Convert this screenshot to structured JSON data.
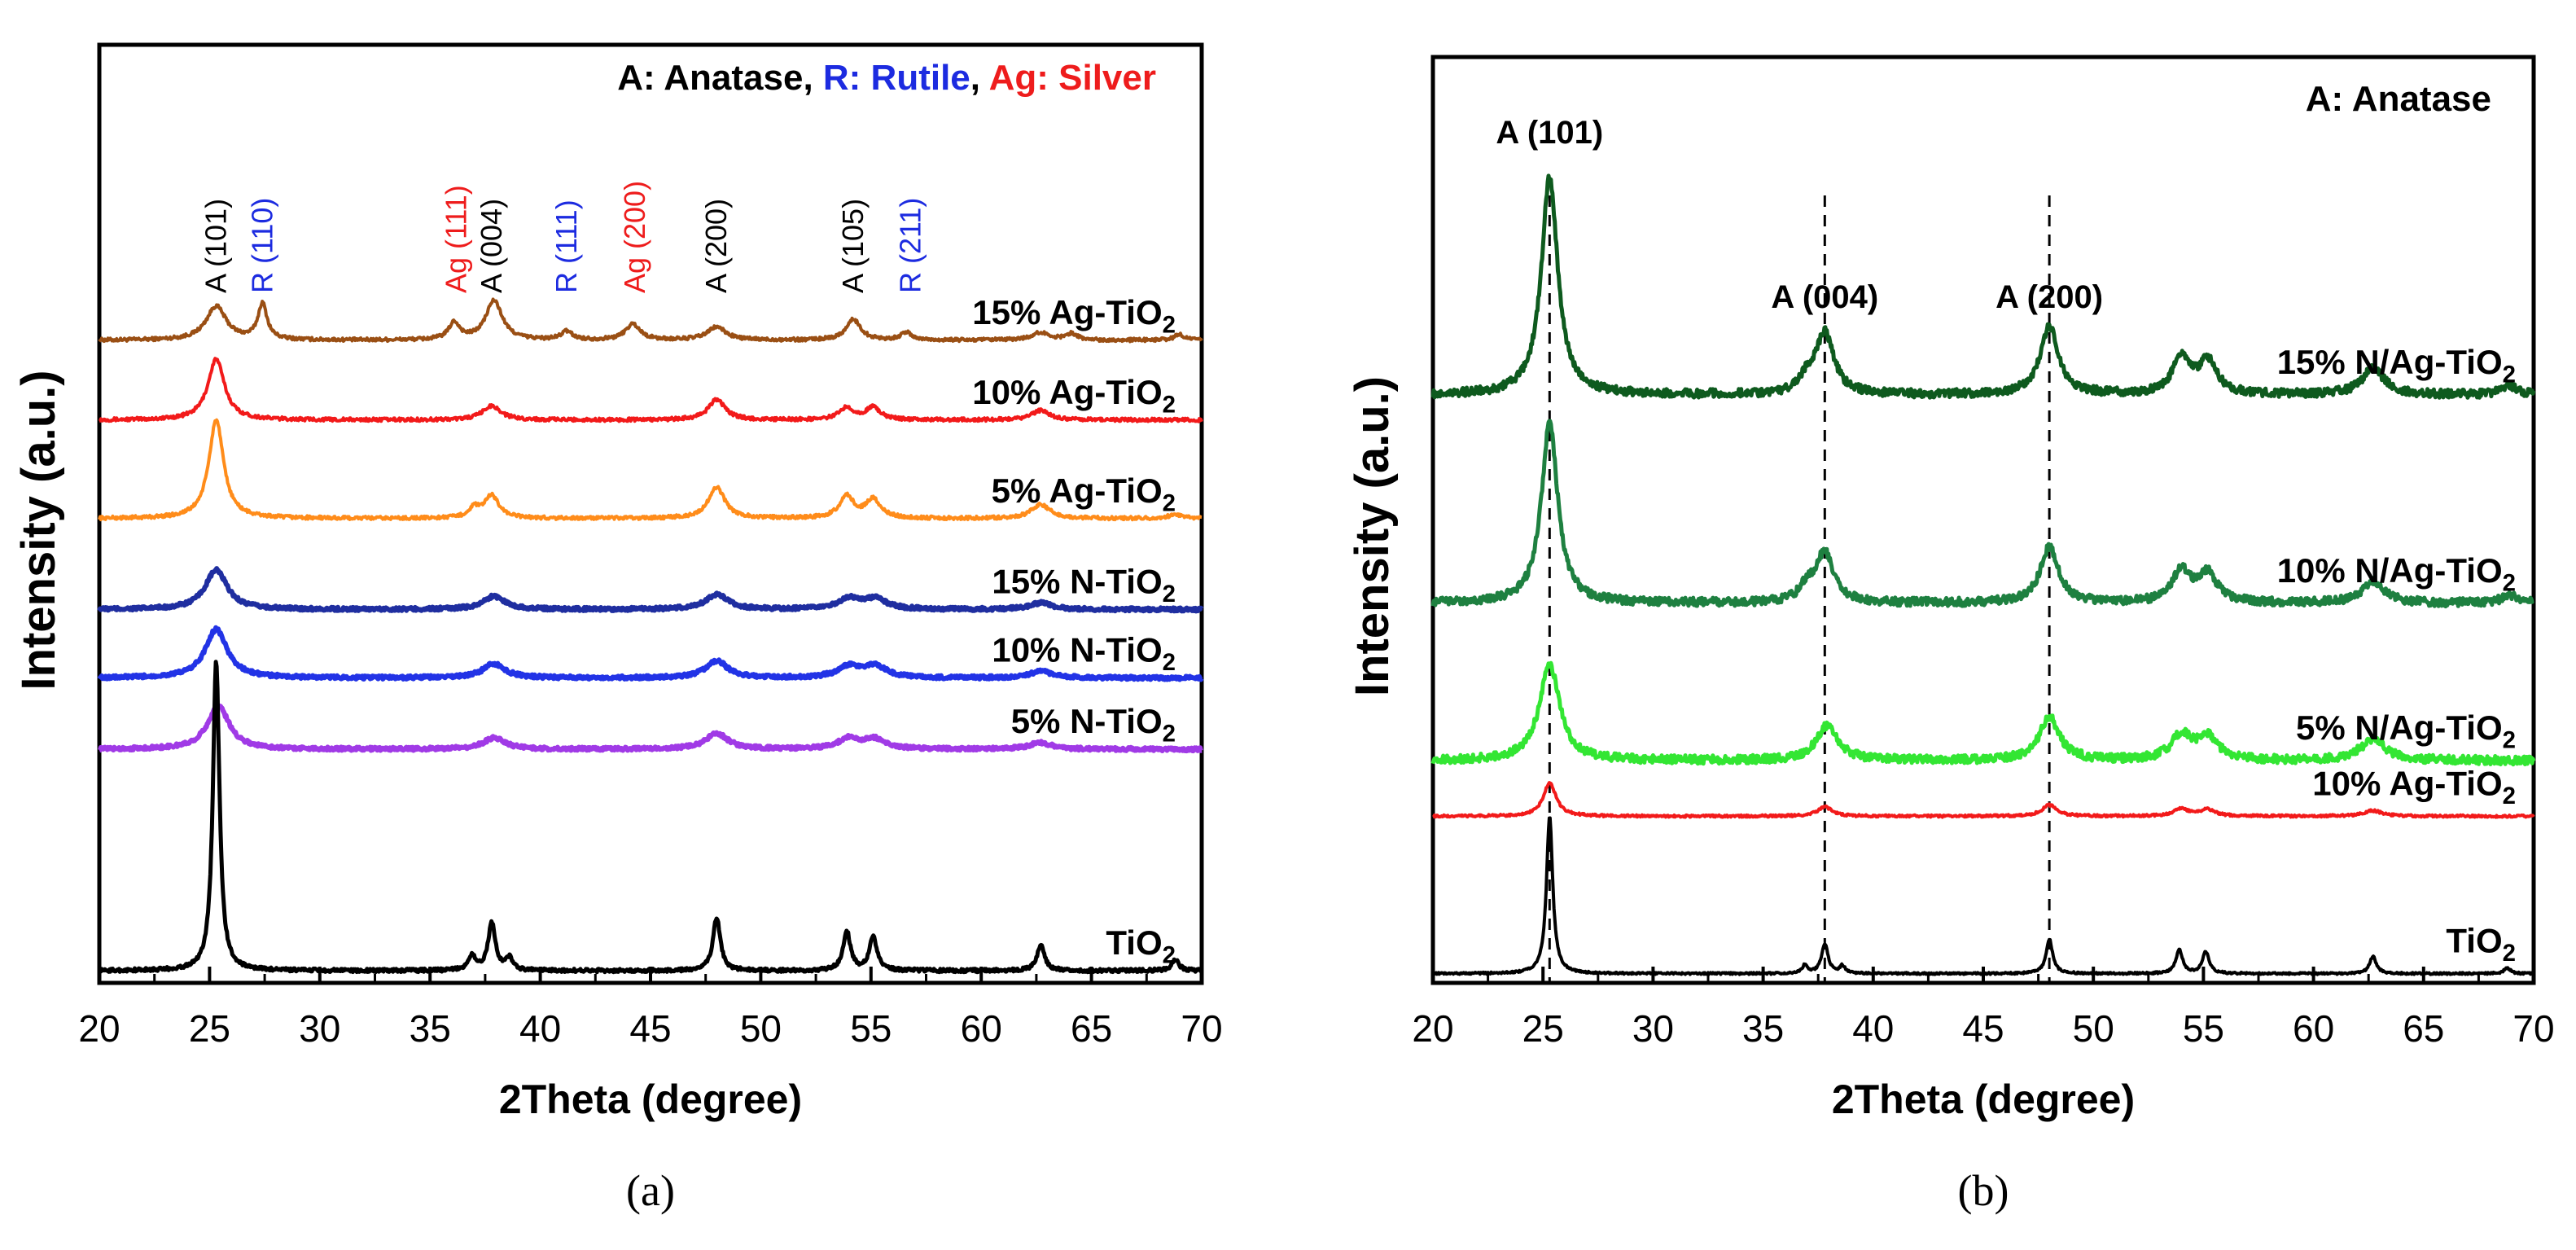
{
  "colors": {
    "black": "#000000",
    "brown": "#9A4F14",
    "red": "#F21A1A",
    "orange": "#FF8C1A",
    "navy": "#1F2EA0",
    "blue": "#2233E6",
    "purple": "#A03AE6",
    "darkgreen": "#0E5A1E",
    "green": "#1E8040",
    "lightgreen": "#33E633",
    "label_black": "#000000",
    "label_blue": "#1C2BE0",
    "label_red": "#EE1C1C"
  },
  "chart_data": [
    {
      "panel": "a",
      "caption": "(a)",
      "type": "line",
      "xlabel": "2Theta (degree)",
      "ylabel": "Intensity (a.u.)",
      "xlim": [
        20,
        70
      ],
      "ylim": [
        0,
        100
      ],
      "xticks": [
        20,
        25,
        30,
        35,
        40,
        45,
        50,
        55,
        60,
        65,
        70
      ],
      "legend_note": {
        "parts": [
          {
            "text": "A: Anatase",
            "color": "label_black"
          },
          {
            "text": ", ",
            "color": "label_black"
          },
          {
            "text": "R: Rutile",
            "color": "label_blue"
          },
          {
            "text": ", ",
            "color": "label_black"
          },
          {
            "text": "Ag: Silver",
            "color": "label_red"
          }
        ]
      },
      "peak_labels": [
        {
          "text": "A (101)",
          "x": 25.3,
          "color": "label_black"
        },
        {
          "text": "R (110)",
          "x": 27.4,
          "color": "label_blue"
        },
        {
          "text": "Ag (111)",
          "x": 36.2,
          "color": "label_red"
        },
        {
          "text": "A (004)",
          "x": 37.8,
          "color": "label_black"
        },
        {
          "text": "R (111)",
          "x": 41.2,
          "color": "label_blue"
        },
        {
          "text": "Ag (200)",
          "x": 44.3,
          "color": "label_red"
        },
        {
          "text": "A (200)",
          "x": 48.0,
          "color": "label_black"
        },
        {
          "text": "A (105)",
          "x": 54.2,
          "color": "label_black"
        },
        {
          "text": "R (211)",
          "x": 56.8,
          "color": "label_blue"
        }
      ],
      "series": [
        {
          "name": "15% Ag-TiO2",
          "label": "15% Ag-TiO",
          "sub": "2",
          "color": "brown",
          "baseline": 68.5,
          "stroke": 4,
          "peaks": [
            [
              25.3,
              3.6,
              0.55
            ],
            [
              27.4,
              3.8,
              0.25
            ],
            [
              36.1,
              1.8,
              0.3
            ],
            [
              37.9,
              4.2,
              0.45
            ],
            [
              41.2,
              0.9,
              0.3
            ],
            [
              44.2,
              1.7,
              0.4
            ],
            [
              48.0,
              1.4,
              0.5
            ],
            [
              54.2,
              2.2,
              0.4
            ],
            [
              56.6,
              0.8,
              0.3
            ],
            [
              62.7,
              0.8,
              0.5
            ],
            [
              64.1,
              0.7,
              0.3
            ],
            [
              69.0,
              0.6,
              0.3
            ]
          ]
        },
        {
          "name": "10% Ag-TiO2",
          "label": "10% Ag-TiO",
          "sub": "2",
          "color": "red",
          "baseline": 60.0,
          "stroke": 4,
          "peaks": [
            [
              25.3,
              6.5,
              0.45
            ],
            [
              37.8,
              1.5,
              0.5
            ],
            [
              48.0,
              2.2,
              0.45
            ],
            [
              53.9,
              1.3,
              0.4
            ],
            [
              55.1,
              1.3,
              0.4
            ],
            [
              62.7,
              1.0,
              0.5
            ]
          ]
        },
        {
          "name": "5% Ag-TiO2",
          "label": "5% Ag-TiO",
          "sub": "2",
          "color": "orange",
          "baseline": 49.5,
          "stroke": 4,
          "peaks": [
            [
              25.3,
              10.5,
              0.4
            ],
            [
              37.0,
              1.0,
              0.3
            ],
            [
              37.8,
              2.4,
              0.4
            ],
            [
              48.0,
              3.3,
              0.45
            ],
            [
              53.9,
              2.3,
              0.4
            ],
            [
              55.1,
              2.0,
              0.4
            ],
            [
              62.7,
              1.5,
              0.5
            ],
            [
              68.8,
              0.5,
              0.3
            ]
          ]
        },
        {
          "name": "15% N-TiO2",
          "label": "15% N-TiO",
          "sub": "2",
          "color": "navy",
          "baseline": 39.8,
          "stroke": 6,
          "peaks": [
            [
              25.3,
              4.2,
              0.6
            ],
            [
              37.9,
              1.4,
              0.6
            ],
            [
              48.0,
              1.6,
              0.6
            ],
            [
              54.0,
              1.1,
              0.6
            ],
            [
              55.2,
              1.1,
              0.6
            ],
            [
              62.7,
              0.7,
              0.6
            ]
          ]
        },
        {
          "name": "10% N-TiO2",
          "label": "10% N-TiO",
          "sub": "2",
          "color": "blue",
          "baseline": 32.5,
          "stroke": 6,
          "peaks": [
            [
              25.3,
              5.2,
              0.6
            ],
            [
              37.9,
              1.5,
              0.6
            ],
            [
              48.0,
              1.8,
              0.6
            ],
            [
              54.0,
              1.2,
              0.6
            ],
            [
              55.2,
              1.2,
              0.6
            ],
            [
              62.7,
              0.7,
              0.6
            ]
          ]
        },
        {
          "name": "5% N-TiO2",
          "label": "5% N-TiO",
          "sub": "2",
          "color": "purple",
          "baseline": 24.9,
          "stroke": 6,
          "peaks": [
            [
              25.4,
              4.6,
              0.6
            ],
            [
              37.9,
              1.2,
              0.6
            ],
            [
              48.0,
              1.7,
              0.6
            ],
            [
              54.0,
              1.1,
              0.6
            ],
            [
              55.2,
              1.0,
              0.6
            ],
            [
              62.7,
              0.7,
              0.6
            ]
          ]
        },
        {
          "name": "TiO2",
          "label": "TiO",
          "sub": "2",
          "color": "black",
          "baseline": 1.3,
          "stroke": 5,
          "peaks": [
            [
              25.3,
              33.0,
              0.18
            ],
            [
              36.9,
              1.6,
              0.18
            ],
            [
              37.8,
              5.1,
              0.2
            ],
            [
              38.6,
              1.3,
              0.18
            ],
            [
              48.0,
              5.7,
              0.2
            ],
            [
              53.9,
              4.2,
              0.2
            ],
            [
              55.1,
              3.7,
              0.2
            ],
            [
              62.7,
              2.8,
              0.2
            ],
            [
              68.8,
              1.2,
              0.2
            ]
          ]
        }
      ]
    },
    {
      "panel": "b",
      "caption": "(b)",
      "type": "line",
      "xlabel": "2Theta (degree)",
      "ylabel": "Intensity (a.u.)",
      "xlim": [
        20,
        70
      ],
      "ylim": [
        0,
        100
      ],
      "xticks": [
        20,
        25,
        30,
        35,
        40,
        45,
        50,
        55,
        60,
        65,
        70
      ],
      "legend_note": {
        "parts": [
          {
            "text": "A: Anatase",
            "color": "label_black"
          }
        ]
      },
      "peak_labels": [
        {
          "text": "A (101)",
          "x": 25.3,
          "color": "label_black"
        },
        {
          "text": "A (004)",
          "x": 37.8,
          "color": "label_black"
        },
        {
          "text": "A (200)",
          "x": 48.0,
          "color": "label_black"
        }
      ],
      "reference_lines": [
        25.3,
        37.8,
        48.0
      ],
      "series": [
        {
          "name": "15% N/Ag-TiO2",
          "label": "15% N/Ag-TiO",
          "sub": "2",
          "color": "darkgreen",
          "baseline": 63.5,
          "stroke": 5,
          "noise": 0.45,
          "peaks": [
            [
              25.3,
              23.5,
              0.45
            ],
            [
              37.0,
              1.4,
              0.4
            ],
            [
              37.8,
              6.6,
              0.5
            ],
            [
              48.0,
              7.3,
              0.5
            ],
            [
              54.0,
              3.8,
              0.5
            ],
            [
              55.2,
              3.5,
              0.5
            ],
            [
              62.7,
              2.9,
              0.6
            ],
            [
              68.9,
              1.0,
              0.4
            ]
          ]
        },
        {
          "name": "10% N/Ag-TiO2",
          "label": "10% N/Ag-TiO",
          "sub": "2",
          "color": "green",
          "baseline": 41.0,
          "stroke": 5,
          "noise": 0.45,
          "peaks": [
            [
              25.3,
              19.5,
              0.45
            ],
            [
              37.0,
              1.4,
              0.4
            ],
            [
              37.8,
              5.4,
              0.5
            ],
            [
              48.0,
              6.0,
              0.5
            ],
            [
              54.0,
              3.4,
              0.5
            ],
            [
              55.2,
              3.1,
              0.5
            ],
            [
              62.7,
              2.4,
              0.6
            ],
            [
              68.9,
              0.9,
              0.4
            ]
          ]
        },
        {
          "name": "5% N/Ag-TiO2",
          "label": "5% N/Ag-TiO",
          "sub": "2",
          "color": "lightgreen",
          "baseline": 24.0,
          "stroke": 5,
          "noise": 0.45,
          "peaks": [
            [
              25.3,
              10.5,
              0.55
            ],
            [
              37.9,
              3.7,
              0.6
            ],
            [
              48.0,
              4.7,
              0.55
            ],
            [
              54.0,
              2.7,
              0.55
            ],
            [
              55.2,
              2.5,
              0.55
            ],
            [
              62.7,
              2.3,
              0.7
            ]
          ]
        },
        {
          "name": "10% Ag-TiO2",
          "label": "10% Ag-TiO",
          "sub": "2",
          "color": "red",
          "baseline": 18.0,
          "stroke": 4,
          "noise": 0.12,
          "peaks": [
            [
              25.3,
              3.6,
              0.35
            ],
            [
              37.8,
              1.0,
              0.4
            ],
            [
              48.0,
              1.2,
              0.4
            ],
            [
              54.0,
              0.8,
              0.4
            ],
            [
              55.2,
              0.7,
              0.4
            ],
            [
              62.7,
              0.6,
              0.5
            ]
          ]
        },
        {
          "name": "TiO2",
          "label": "TiO",
          "sub": "2",
          "color": "black",
          "baseline": 1.0,
          "stroke": 4,
          "noise": 0.1,
          "peaks": [
            [
              25.3,
              17.0,
              0.17
            ],
            [
              36.9,
              0.9,
              0.15
            ],
            [
              37.8,
              3.2,
              0.18
            ],
            [
              38.6,
              0.8,
              0.15
            ],
            [
              48.0,
              3.7,
              0.18
            ],
            [
              53.9,
              2.6,
              0.18
            ],
            [
              55.1,
              2.4,
              0.18
            ],
            [
              62.7,
              1.9,
              0.18
            ],
            [
              68.8,
              0.6,
              0.18
            ]
          ]
        }
      ]
    }
  ]
}
